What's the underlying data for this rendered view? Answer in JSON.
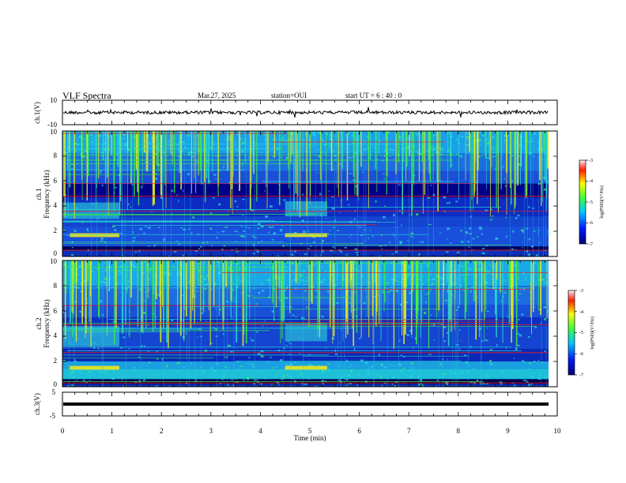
{
  "header": {
    "title": "VLF Spectra",
    "date": "Mar.27, 2025",
    "station": "station=OUI",
    "start": "start  UT =   6 : 40 : 0"
  },
  "colors": {
    "background": "#00007a",
    "band_mid": "#1a3fd6",
    "noise_cyan": "#29e0d0",
    "burst_yellow": "#f2f21a",
    "line_red": "#e81e1e",
    "trace": "#000000"
  },
  "chart_data": [
    {
      "type": "line",
      "panel": "ch1-waveform",
      "ylabel": "ch.1(V)",
      "ylim": [
        -10,
        10
      ],
      "y_ticklabels": [
        "10",
        "-10"
      ],
      "approx_level": 0,
      "approx_amplitude": 2
    },
    {
      "type": "heatmap",
      "panel": "ch1-spectrogram",
      "ylabel": "ch.1\nFrequency (kHz)",
      "ylim": [
        0,
        10
      ],
      "y_ticklabels": [
        "0",
        "2",
        "4",
        "6",
        "8",
        "10"
      ],
      "xlim": [
        0,
        10
      ],
      "colorbar": {
        "label": "log(PSD)(V²/Hz)",
        "range": [
          -7,
          -3
        ],
        "ticklabels": [
          "-3",
          "-4",
          "-5",
          "-6",
          "-7"
        ]
      }
    },
    {
      "type": "heatmap",
      "panel": "ch2-spectrogram",
      "ylabel": "ch.2\nFrequency (kHz)",
      "ylim": [
        0,
        10
      ],
      "y_ticklabels": [
        "0",
        "2",
        "4",
        "6",
        "8",
        "10"
      ],
      "xlim": [
        0,
        10
      ],
      "colorbar": {
        "label": "log(PSD)(V²/Hz)",
        "range": [
          -7,
          -3
        ],
        "ticklabels": [
          "-3",
          "-4",
          "-5",
          "-6",
          "-7"
        ]
      }
    },
    {
      "type": "line",
      "panel": "ch3-waveform",
      "ylabel": "ch.3(V)",
      "ylim": [
        -5,
        5
      ],
      "y_ticklabels": [
        "5",
        "-5"
      ],
      "approx_level": -1
    }
  ],
  "xaxis": {
    "xlabel": "Time (min)",
    "xlim": [
      0,
      10
    ],
    "ticklabels": [
      "0",
      "1",
      "2",
      "3",
      "4",
      "5",
      "6",
      "7",
      "8",
      "9",
      "10"
    ]
  }
}
